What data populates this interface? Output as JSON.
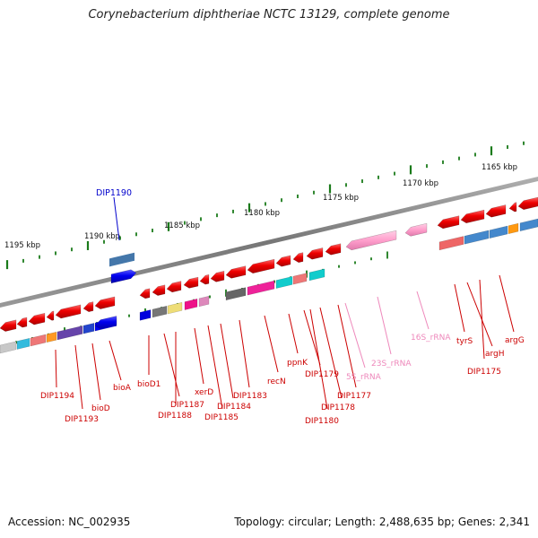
{
  "title": "Corynebacterium diphtheriae NCTC 13129, complete genome",
  "accession_text": "Accession: NC_002935",
  "topology_text": "Topology: circular; Length: 2,488,635 bp; Genes: 2,341",
  "scale_labels": [
    "1195 kbp",
    "1190 kbp",
    "1185 kbp",
    "1180 kbp",
    "1175 kbp",
    "1170 kbp",
    "1165 kbp"
  ],
  "highlighted_gene": "DIP1190",
  "gene_labels": [
    "DIP1194",
    "DIP1193",
    "bioD",
    "bioA",
    "bioD1",
    "DIP1187",
    "DIP1188",
    "xerD",
    "DIP1185",
    "DIP1184",
    "DIP1183",
    "recN",
    "ppnK",
    "DIP1179",
    "DIP1180",
    "DIP1178",
    "DIP1177",
    "5S_rRNA",
    "23S_rRNA",
    "16S_rRNA",
    "tyrS",
    "argH",
    "DIP1175",
    "argG"
  ],
  "colors": {
    "gene_forward": "#ff0000",
    "gene_selected": "#0000ff",
    "rrna": "#ff99cc",
    "label_gene": "#cc0000",
    "label_rrna": "#ee88bb",
    "label_selected": "#0000cc",
    "tick": "#1a7a1a",
    "backbone": "#888888"
  }
}
